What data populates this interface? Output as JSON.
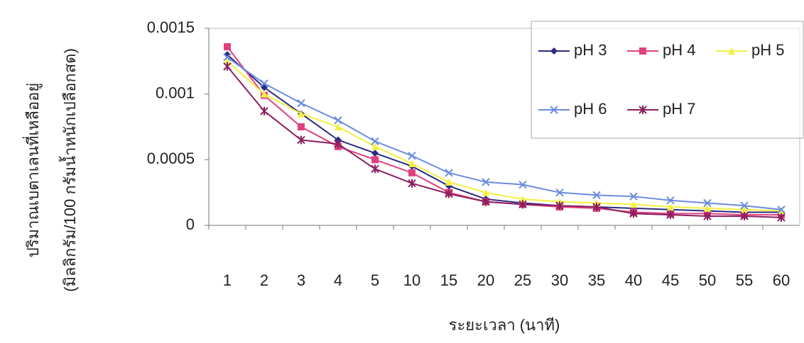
{
  "chart_data": {
    "type": "line",
    "y_label": [
      "ปริมาณเบตาเลนที่เหลืออยู่",
      "(มิลลิกรัม/100 กรัมน้ำหนักเปลือกสด)"
    ],
    "x_label": "ระยะเวลา (นาที)",
    "categories": [
      "1",
      "2",
      "3",
      "4",
      "5",
      "10",
      "15",
      "20",
      "25",
      "30",
      "35",
      "40",
      "45",
      "50",
      "55",
      "60"
    ],
    "series": [
      {
        "name": "pH 3",
        "color": "#2b2b80",
        "marker": "diamond",
        "values": [
          0.0013,
          0.00105,
          0.00085,
          0.00065,
          0.00055,
          0.00045,
          0.0003,
          0.0002,
          0.00017,
          0.00015,
          0.00014,
          0.00013,
          0.00012,
          0.00011,
          0.0001,
          0.0001
        ]
      },
      {
        "name": "pH 4",
        "color": "#e0407f",
        "marker": "square",
        "values": [
          0.00136,
          0.00099,
          0.00075,
          0.0006,
          0.0005,
          0.0004,
          0.00025,
          0.00018,
          0.00016,
          0.00014,
          0.00013,
          0.0001,
          9e-05,
          9e-05,
          8e-05,
          8e-05
        ]
      },
      {
        "name": "pH 5",
        "color": "#f2f040",
        "marker": "triangle",
        "values": [
          0.00125,
          0.001,
          0.00085,
          0.00075,
          0.0006,
          0.00047,
          0.00033,
          0.00025,
          0.0002,
          0.00018,
          0.00017,
          0.00016,
          0.00014,
          0.00013,
          0.00012,
          0.00011
        ]
      },
      {
        "name": "pH 6",
        "color": "#6b8cdf",
        "marker": "x",
        "values": [
          0.00128,
          0.00108,
          0.00093,
          0.0008,
          0.00064,
          0.00053,
          0.0004,
          0.00033,
          0.00031,
          0.00025,
          0.00023,
          0.00022,
          0.00019,
          0.00017,
          0.00015,
          0.00012
        ]
      },
      {
        "name": "pH 7",
        "color": "#8b2060",
        "marker": "star",
        "values": [
          0.00121,
          0.00087,
          0.00065,
          0.00062,
          0.00043,
          0.00032,
          0.00024,
          0.00018,
          0.00016,
          0.00015,
          0.00014,
          9e-05,
          8e-05,
          7e-05,
          7e-05,
          6e-05
        ]
      }
    ],
    "ylim": [
      0,
      0.0015
    ],
    "yticks": [
      0,
      0.0005,
      0.001,
      0.0015
    ],
    "grid": false,
    "legend": "upper-right"
  }
}
